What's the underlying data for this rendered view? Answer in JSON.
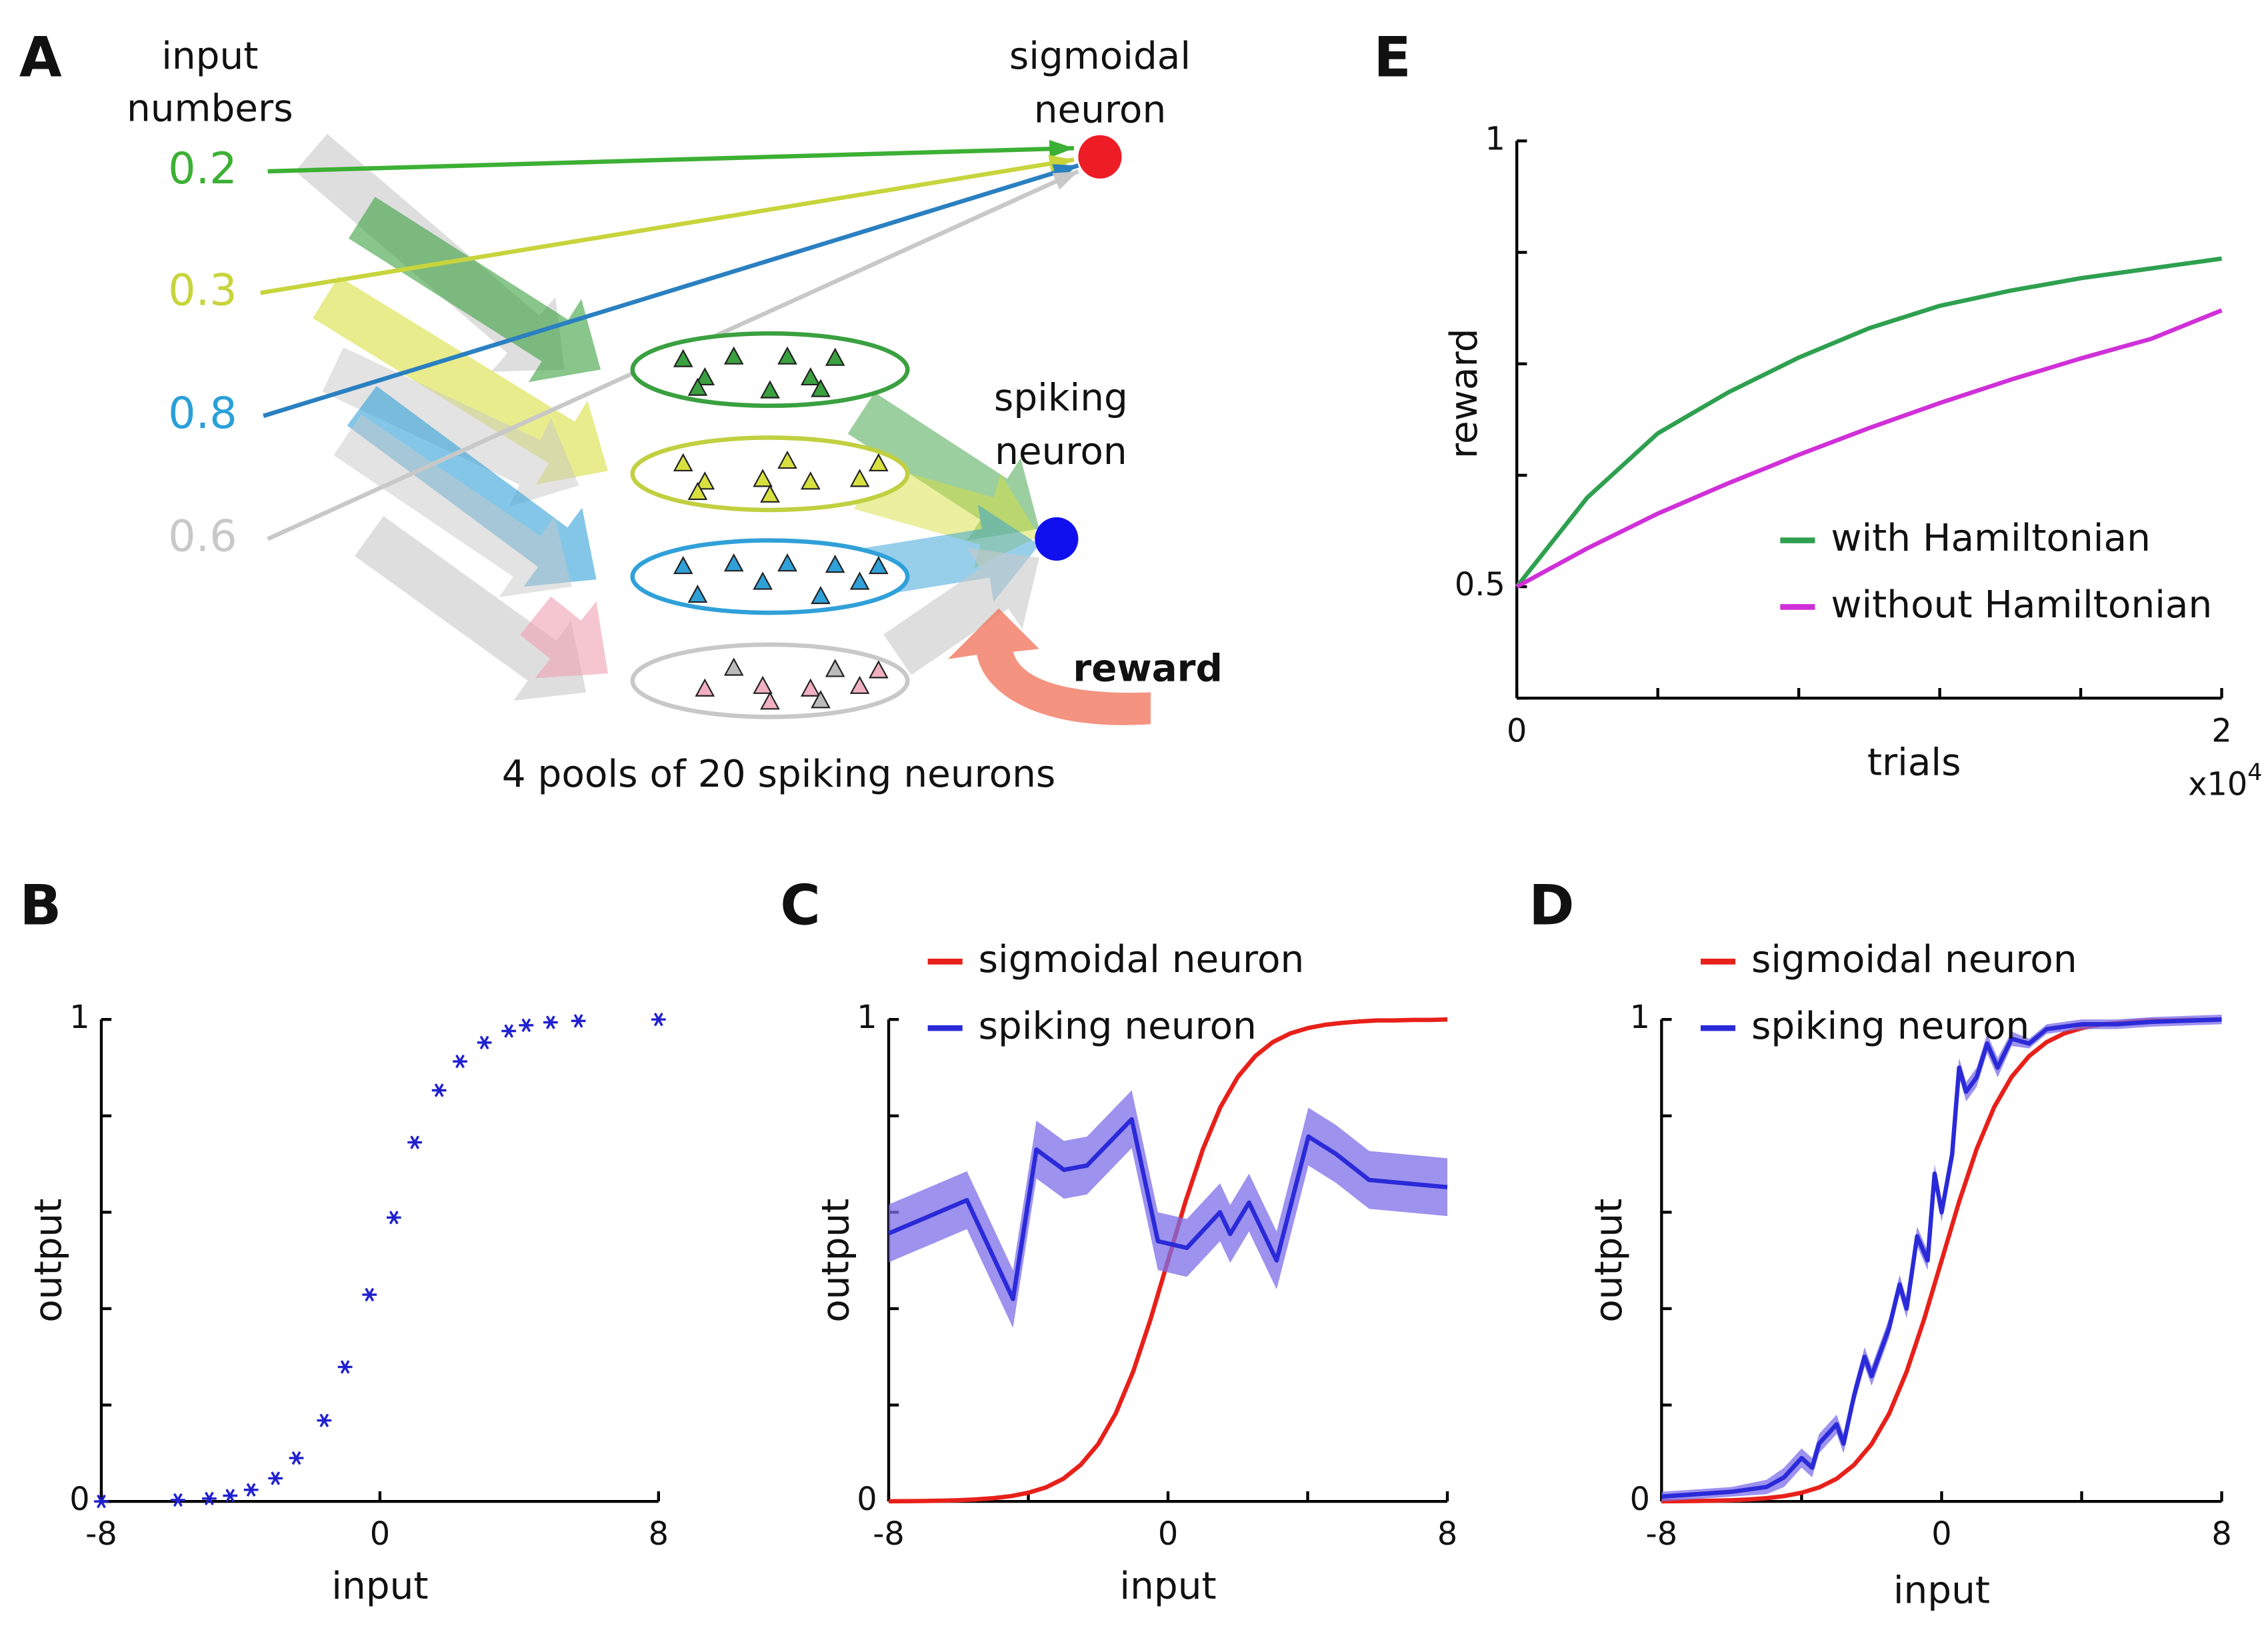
{
  "diagram": {
    "panel": "A",
    "input_title": [
      "input",
      "numbers"
    ],
    "inputs": [
      "0.2",
      "0.3",
      "0.8",
      "0.6"
    ],
    "sigmoidal_label": [
      "sigmoidal",
      "neuron"
    ],
    "spiking_label": [
      "spiking",
      "neuron"
    ],
    "reward": "reward",
    "caption": "4 pools of 20 spiking neurons"
  },
  "chart_data": [
    {
      "panel": "B",
      "type": "scatter",
      "x_label": "input",
      "y_label": "output",
      "xlim": [
        -8,
        8
      ],
      "ylim": [
        0,
        1
      ],
      "xticks": [
        -8,
        0,
        8
      ],
      "yticks": [
        0,
        1
      ],
      "minor_yticks": [
        0.2,
        0.4,
        0.6,
        0.8
      ],
      "color": "#2020d0",
      "x": [
        -8,
        -5.8,
        -4.9,
        -4.3,
        -3.7,
        -3,
        -2.4,
        -1.6,
        -1,
        -0.3,
        0.4,
        1,
        1.7,
        2.3,
        3,
        3.7,
        4.2,
        4.9,
        5.7,
        8
      ],
      "values": [
        0,
        0.003,
        0.006,
        0.012,
        0.024,
        0.048,
        0.09,
        0.168,
        0.279,
        0.429,
        0.589,
        0.745,
        0.853,
        0.913,
        0.952,
        0.976,
        0.988,
        0.994,
        0.997,
        1.0
      ]
    },
    {
      "panel": "C",
      "type": "line",
      "x_label": "input",
      "y_label": "output",
      "xlim": [
        -8,
        8
      ],
      "ylim": [
        0,
        1
      ],
      "xticks": [
        -8,
        0,
        8
      ],
      "minor_xticks": [
        -4,
        4
      ],
      "yticks": [
        0,
        1
      ],
      "minor_yticks": [
        0.2,
        0.4,
        0.6,
        0.8
      ],
      "legend": "upper left",
      "series": [
        {
          "name": "sigmoidal neuron",
          "color": "#e8201a",
          "x": [
            -8,
            -7.5,
            -7,
            -6.5,
            -6,
            -5.5,
            -5,
            -4.5,
            -4,
            -3.5,
            -3,
            -2.5,
            -2,
            -1.5,
            -1,
            -0.5,
            0,
            0.5,
            1,
            1.5,
            2,
            2.5,
            3,
            3.5,
            4,
            4.5,
            5,
            5.5,
            6,
            6.5,
            7,
            7.5,
            8
          ],
          "values": [
            0.0003,
            0.0006,
            0.0009,
            0.0015,
            0.0025,
            0.0041,
            0.0067,
            0.011,
            0.018,
            0.029,
            0.047,
            0.076,
            0.119,
            0.182,
            0.269,
            0.378,
            0.5,
            0.622,
            0.731,
            0.818,
            0.881,
            0.924,
            0.953,
            0.971,
            0.982,
            0.989,
            0.993,
            0.996,
            0.998,
            0.998,
            0.999,
            0.999,
            1.0
          ]
        },
        {
          "name": "spiking neuron",
          "color": "#2a2ad8",
          "band_color": "#7c6ee8",
          "x": [
            -8,
            -5.76,
            -4.44,
            -3.77,
            -2.98,
            -2.32,
            -1.04,
            -0.29,
            0.54,
            1.49,
            1.78,
            2.32,
            3.11,
            4.02,
            4.81,
            5.76,
            8
          ],
          "values": [
            0.556,
            0.625,
            0.42,
            0.73,
            0.688,
            0.697,
            0.793,
            0.54,
            0.526,
            0.6,
            0.555,
            0.62,
            0.5,
            0.757,
            0.721,
            0.667,
            0.652
          ],
          "errors": [
            0.06,
            0.06,
            0.06,
            0.06,
            0.06,
            0.06,
            0.06,
            0.06,
            0.06,
            0.06,
            0.06,
            0.06,
            0.06,
            0.06,
            0.06,
            0.06,
            0.06
          ]
        }
      ]
    },
    {
      "panel": "D",
      "type": "line",
      "x_label": "input",
      "y_label": "output",
      "xlim": [
        -8,
        8
      ],
      "ylim": [
        0,
        1
      ],
      "xticks": [
        -8,
        0,
        8
      ],
      "minor_xticks": [
        -4,
        4
      ],
      "yticks": [
        0,
        1
      ],
      "minor_yticks": [
        0.2,
        0.4,
        0.6,
        0.8
      ],
      "legend": "upper left",
      "series": [
        {
          "name": "sigmoidal neuron",
          "color": "#e8201a",
          "x": [
            -8,
            -7.5,
            -7,
            -6.5,
            -6,
            -5.5,
            -5,
            -4.5,
            -4,
            -3.5,
            -3,
            -2.5,
            -2,
            -1.5,
            -1,
            -0.5,
            0,
            0.5,
            1,
            1.5,
            2,
            2.5,
            3,
            3.5,
            4,
            4.5,
            5,
            5.5,
            6,
            6.5,
            7,
            7.5,
            8
          ],
          "values": [
            0.0003,
            0.0006,
            0.0009,
            0.0015,
            0.0025,
            0.0041,
            0.0067,
            0.011,
            0.018,
            0.029,
            0.047,
            0.076,
            0.119,
            0.182,
            0.269,
            0.378,
            0.5,
            0.622,
            0.731,
            0.818,
            0.881,
            0.924,
            0.953,
            0.971,
            0.982,
            0.989,
            0.993,
            0.996,
            0.998,
            0.998,
            0.999,
            0.999,
            1.0
          ]
        },
        {
          "name": "spiking neuron",
          "color": "#2a2ad8",
          "band_color": "#7c6ee8",
          "x": [
            -8,
            -7,
            -6,
            -5,
            -4.5,
            -4,
            -3.7,
            -3.5,
            -3,
            -2.8,
            -2.5,
            -2.2,
            -2,
            -1.5,
            -1.2,
            -1,
            -0.7,
            -0.4,
            -0.2,
            0,
            0.3,
            0.5,
            0.7,
            1,
            1.3,
            1.6,
            2,
            2.5,
            3,
            4,
            5,
            6,
            8
          ],
          "values": [
            0.01,
            0.015,
            0.02,
            0.03,
            0.05,
            0.09,
            0.07,
            0.12,
            0.16,
            0.12,
            0.22,
            0.3,
            0.26,
            0.36,
            0.45,
            0.4,
            0.55,
            0.5,
            0.68,
            0.6,
            0.72,
            0.9,
            0.85,
            0.88,
            0.95,
            0.9,
            0.96,
            0.95,
            0.98,
            0.99,
            0.99,
            0.995,
            1.0
          ],
          "errors": [
            0.01,
            0.01,
            0.01,
            0.015,
            0.02,
            0.02,
            0.02,
            0.02,
            0.02,
            0.02,
            0.02,
            0.02,
            0.02,
            0.02,
            0.02,
            0.02,
            0.02,
            0.02,
            0.02,
            0.02,
            0.02,
            0.02,
            0.02,
            0.02,
            0.02,
            0.02,
            0.015,
            0.01,
            0.01,
            0.01,
            0.01,
            0.01,
            0.01
          ]
        }
      ]
    },
    {
      "panel": "E",
      "type": "line",
      "x_label": "trials",
      "y_label": "reward",
      "xlim": [
        0,
        20000
      ],
      "ylim": [
        0.375,
        1
      ],
      "xticks": [
        0,
        {
          "value": 20000,
          "label": "2"
        }
      ],
      "minor_xticks": [
        4000,
        8000,
        12000,
        16000
      ],
      "x_multiplier": {
        "base": "x10",
        "exponent": "4"
      },
      "yticks": [
        0.5,
        1
      ],
      "minor_yticks": [
        0.375,
        0.625,
        0.75,
        0.875
      ],
      "legend": "lower right",
      "x": [
        0,
        2000,
        4000,
        6000,
        8000,
        10000,
        12000,
        14000,
        16000,
        18000,
        20000
      ],
      "series": [
        {
          "name": "with Hamiltonian",
          "color": "#2ea050",
          "values": [
            0.5,
            0.6,
            0.672,
            0.718,
            0.757,
            0.79,
            0.815,
            0.832,
            0.846,
            0.857,
            0.868
          ]
        },
        {
          "name": "without Hamiltonian",
          "color": "#d030d8",
          "values": [
            0.5,
            0.543,
            0.582,
            0.616,
            0.648,
            0.678,
            0.706,
            0.732,
            0.756,
            0.778,
            0.81
          ]
        }
      ]
    }
  ]
}
